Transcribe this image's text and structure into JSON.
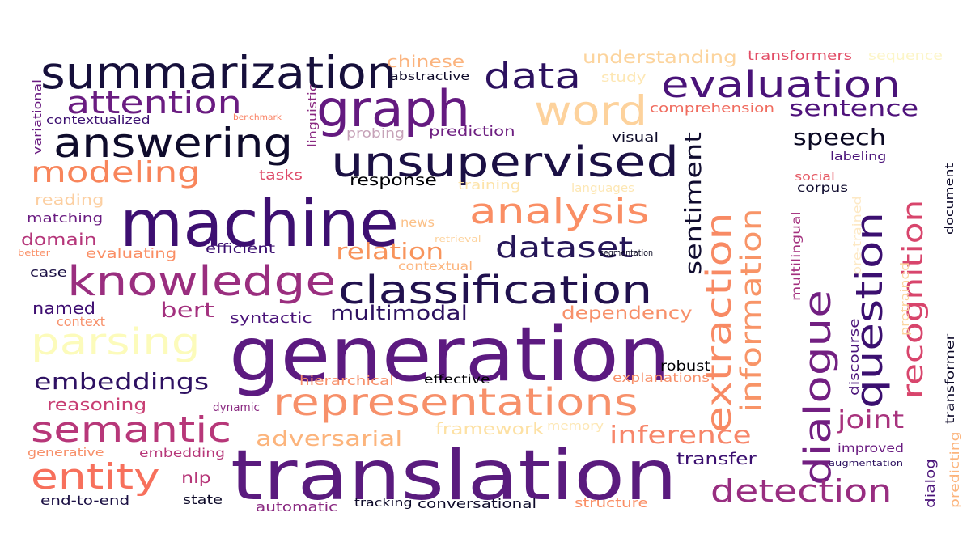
{
  "words": [
    {
      "text": "generation",
      "color": "#5c1a80"
    },
    {
      "text": "translation",
      "color": "#5a1b7e"
    },
    {
      "text": "machine",
      "color": "#3d0f71"
    },
    {
      "text": "summarization",
      "color": "#160f3b"
    },
    {
      "text": "unsupervised",
      "color": "#1b1044"
    },
    {
      "text": "classification",
      "color": "#21114e"
    },
    {
      "text": "knowledge",
      "color": "#9a2e7f"
    },
    {
      "text": "representations",
      "color": "#f7906a"
    },
    {
      "text": "graph",
      "color": "#641a80"
    },
    {
      "text": "answering",
      "color": "#0e0b2b"
    },
    {
      "text": "evaluation",
      "color": "#4a1379"
    },
    {
      "text": "dialogue",
      "color": "#721f81"
    },
    {
      "text": "extraction",
      "color": "#f88a64"
    },
    {
      "text": "question",
      "color": "#3b0f70"
    },
    {
      "text": "information",
      "color": "#f89467"
    },
    {
      "text": "recognition",
      "color": "#d8456c"
    },
    {
      "text": "analysis",
      "color": "#fa8e64"
    },
    {
      "text": "word",
      "color": "#fdd29c"
    },
    {
      "text": "data",
      "color": "#2c115f"
    },
    {
      "text": "attention",
      "color": "#6a1c81"
    },
    {
      "text": "modeling",
      "color": "#f8855b"
    },
    {
      "text": "parsing",
      "color": "#fcfbbb"
    },
    {
      "text": "semantic",
      "color": "#b73779"
    },
    {
      "text": "entity",
      "color": "#f7705c"
    },
    {
      "text": "embeddings",
      "color": "#2e1162"
    },
    {
      "text": "detection",
      "color": "#982d80"
    },
    {
      "text": "dataset",
      "color": "#261658"
    },
    {
      "text": "sentiment",
      "color": "#100c2f"
    },
    {
      "text": "speech",
      "color": "#0a0822"
    },
    {
      "text": "sentence",
      "color": "#4f127b"
    },
    {
      "text": "joint",
      "color": "#a8327d"
    },
    {
      "text": "inference",
      "color": "#f7866a"
    },
    {
      "text": "adversarial",
      "color": "#fcb47c"
    },
    {
      "text": "relation",
      "color": "#f8945c"
    },
    {
      "text": "multimodal",
      "color": "#2d1160"
    },
    {
      "text": "bert",
      "color": "#a3307e"
    },
    {
      "text": "named",
      "color": "#3f0f72"
    },
    {
      "text": "domain",
      "color": "#b5367a"
    },
    {
      "text": "dependency",
      "color": "#f7906a"
    },
    {
      "text": "reasoning",
      "color": "#c83e73"
    },
    {
      "text": "framework",
      "color": "#fde1a4"
    },
    {
      "text": "transfer",
      "color": "#3b0f70"
    },
    {
      "text": "chinese",
      "color": "#fbb47f"
    },
    {
      "text": "understanding",
      "color": "#fcd49d"
    },
    {
      "text": "transformers",
      "color": "#e24d66"
    },
    {
      "text": "sequence",
      "color": "#fcf5c7"
    },
    {
      "text": "abstractive",
      "color": "#0d0a29"
    },
    {
      "text": "study",
      "color": "#fde7b4"
    },
    {
      "text": "comprehension",
      "color": "#f06b5e"
    },
    {
      "text": "linguistic",
      "color": "#8a2981"
    },
    {
      "text": "benchmark",
      "color": "#fa7d5e"
    },
    {
      "text": "contextualized",
      "color": "#3b0f70"
    },
    {
      "text": "probing",
      "color": "#c6a2b8"
    },
    {
      "text": "prediction",
      "color": "#6e1f81"
    },
    {
      "text": "visual",
      "color": "#0d0a29"
    },
    {
      "text": "labeling",
      "color": "#4a1379"
    },
    {
      "text": "social",
      "color": "#e55964"
    },
    {
      "text": "corpus",
      "color": "#100c2f"
    },
    {
      "text": "document",
      "color": "#0d0a29"
    },
    {
      "text": "variational",
      "color": "#6a1c81"
    },
    {
      "text": "tasks",
      "color": "#de4968"
    },
    {
      "text": "training",
      "color": "#fde3a9"
    },
    {
      "text": "languages",
      "color": "#fde7b4"
    },
    {
      "text": "response",
      "color": "#000004"
    },
    {
      "text": "reading",
      "color": "#fccfa1"
    },
    {
      "text": "matching",
      "color": "#6a1c81"
    },
    {
      "text": "news",
      "color": "#fbc087"
    },
    {
      "text": "retrieval",
      "color": "#fdd29c"
    },
    {
      "text": "segmentation",
      "color": "#0a0822"
    },
    {
      "text": "better",
      "color": "#fa8e64"
    },
    {
      "text": "efficient",
      "color": "#3b0f70"
    },
    {
      "text": "evaluating",
      "color": "#fa8e64"
    },
    {
      "text": "contextual",
      "color": "#fcb47c"
    },
    {
      "text": "case",
      "color": "#1b1044"
    },
    {
      "text": "multilingual",
      "color": "#a3307e"
    },
    {
      "text": "pre-trained",
      "color": "#fde9c5"
    },
    {
      "text": "pretrained",
      "color": "#fcd49d"
    },
    {
      "text": "context",
      "color": "#f7906a"
    },
    {
      "text": "syntactic",
      "color": "#4a1379"
    },
    {
      "text": "discourse",
      "color": "#4a1379"
    },
    {
      "text": "transformer",
      "color": "#0d0a29"
    },
    {
      "text": "robust",
      "color": "#000004"
    },
    {
      "text": "hierarchical",
      "color": "#f7906a"
    },
    {
      "text": "effective",
      "color": "#000004"
    },
    {
      "text": "explanations",
      "color": "#f7906a"
    },
    {
      "text": "dynamic",
      "color": "#8a2981"
    },
    {
      "text": "memory",
      "color": "#fde7b4"
    },
    {
      "text": "generative",
      "color": "#f7906a"
    },
    {
      "text": "embedding",
      "color": "#b73779"
    },
    {
      "text": "dialog",
      "color": "#4a1379"
    },
    {
      "text": "improved",
      "color": "#6a1c81"
    },
    {
      "text": "predicting",
      "color": "#fcb47c"
    },
    {
      "text": "augmentation",
      "color": "#2c115f"
    },
    {
      "text": "nlp",
      "color": "#b73779"
    },
    {
      "text": "end-to-end",
      "color": "#1b1044"
    },
    {
      "text": "state",
      "color": "#0d0a29"
    },
    {
      "text": "automatic",
      "color": "#8a2981"
    },
    {
      "text": "tracking",
      "color": "#0d0a29"
    },
    {
      "text": "conversational",
      "color": "#0d0a29"
    },
    {
      "text": "structure",
      "color": "#fa8e64"
    }
  ]
}
